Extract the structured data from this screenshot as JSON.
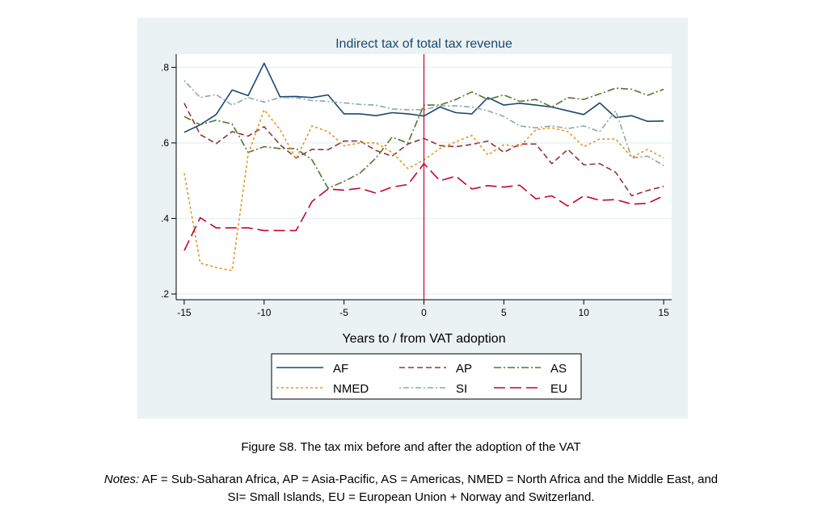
{
  "chart_data": {
    "type": "line",
    "title": "Indirect tax of total tax revenue",
    "xlabel": "Years to / from VAT adoption",
    "ylabel": "",
    "xlim": [
      -15.5,
      15.5
    ],
    "ylim": [
      0.185,
      0.835
    ],
    "xticks": [
      -15,
      -10,
      -5,
      0,
      5,
      10,
      15
    ],
    "xtick_labels": [
      "-15",
      "-10",
      "-5",
      "0",
      "5",
      "10",
      "15"
    ],
    "yticks": [
      0.2,
      0.4,
      0.6,
      0.8
    ],
    "ytick_labels": [
      ".2",
      ".4",
      ".6",
      ".8"
    ],
    "grid": true,
    "reference_line_x": 0,
    "legend_position": "bottom",
    "x": [
      -15,
      -14,
      -13,
      -12,
      -11,
      -10,
      -9,
      -8,
      -7,
      -6,
      -5,
      -4,
      -3,
      -2,
      -1,
      0,
      1,
      2,
      3,
      4,
      5,
      6,
      7,
      8,
      9,
      10,
      11,
      12,
      13,
      14,
      15
    ],
    "series": [
      {
        "name": "AF",
        "color": "#1a476f",
        "dash": "",
        "values": [
          0.628,
          0.648,
          0.675,
          0.74,
          0.725,
          0.811,
          0.722,
          0.723,
          0.72,
          0.727,
          0.677,
          0.677,
          0.672,
          0.68,
          0.677,
          0.671,
          0.695,
          0.68,
          0.677,
          0.72,
          0.7,
          0.705,
          0.7,
          0.695,
          0.685,
          0.675,
          0.706,
          0.667,
          0.672,
          0.657,
          0.658
        ]
      },
      {
        "name": "AP",
        "color": "#90353b",
        "dash": "7,4",
        "values": [
          0.705,
          0.622,
          0.598,
          0.63,
          0.618,
          0.643,
          0.595,
          0.56,
          0.583,
          0.582,
          0.605,
          0.605,
          0.58,
          0.565,
          0.597,
          0.612,
          0.593,
          0.59,
          0.596,
          0.605,
          0.575,
          0.597,
          0.597,
          0.545,
          0.583,
          0.542,
          0.545,
          0.522,
          0.46,
          0.474,
          0.485
        ]
      },
      {
        "name": "AS",
        "color": "#55752f",
        "dash": "9,3,2,3",
        "values": [
          0.67,
          0.648,
          0.66,
          0.65,
          0.575,
          0.59,
          0.585,
          0.585,
          0.555,
          0.48,
          0.498,
          0.52,
          0.56,
          0.615,
          0.6,
          0.7,
          0.7,
          0.715,
          0.735,
          0.715,
          0.727,
          0.71,
          0.715,
          0.695,
          0.72,
          0.715,
          0.73,
          0.745,
          0.742,
          0.726,
          0.742
        ]
      },
      {
        "name": "NMED",
        "color": "#e8941f",
        "dash": "3,3",
        "values": [
          0.52,
          0.282,
          0.27,
          0.262,
          0.57,
          0.688,
          0.635,
          0.558,
          0.645,
          0.63,
          0.592,
          0.6,
          0.6,
          0.575,
          0.532,
          0.555,
          0.585,
          0.603,
          0.62,
          0.568,
          0.595,
          0.59,
          0.635,
          0.64,
          0.63,
          0.59,
          0.61,
          0.61,
          0.562,
          0.583,
          0.56
        ]
      },
      {
        "name": "SI",
        "color": "#8fa6a8",
        "dash": "2,3,7,3",
        "values": [
          0.765,
          0.72,
          0.728,
          0.7,
          0.72,
          0.708,
          0.72,
          0.72,
          0.712,
          0.71,
          0.706,
          0.702,
          0.7,
          0.69,
          0.688,
          0.688,
          0.698,
          0.698,
          0.695,
          0.685,
          0.67,
          0.645,
          0.64,
          0.645,
          0.638,
          0.645,
          0.63,
          0.685,
          0.56,
          0.565,
          0.54
        ]
      },
      {
        "name": "EU",
        "color": "#c10534",
        "dash": "14,6",
        "values": [
          0.315,
          0.402,
          0.375,
          0.375,
          0.375,
          0.368,
          0.368,
          0.368,
          0.445,
          0.478,
          0.475,
          0.48,
          0.467,
          0.483,
          0.49,
          0.545,
          0.5,
          0.512,
          0.478,
          0.487,
          0.483,
          0.488,
          0.452,
          0.46,
          0.433,
          0.46,
          0.448,
          0.45,
          0.438,
          0.44,
          0.46
        ]
      }
    ]
  },
  "caption": {
    "figure": "Figure S8. The tax mix before and after the adoption of the VAT",
    "notes_label": "Notes:",
    "notes_line1": " AF = Sub-Saharan Africa, AP = Asia-Pacific, AS = Americas, NMED = North Africa and the Middle East, and",
    "notes_line2": "SI= Small Islands, EU = European Union + Norway and Switzerland."
  }
}
